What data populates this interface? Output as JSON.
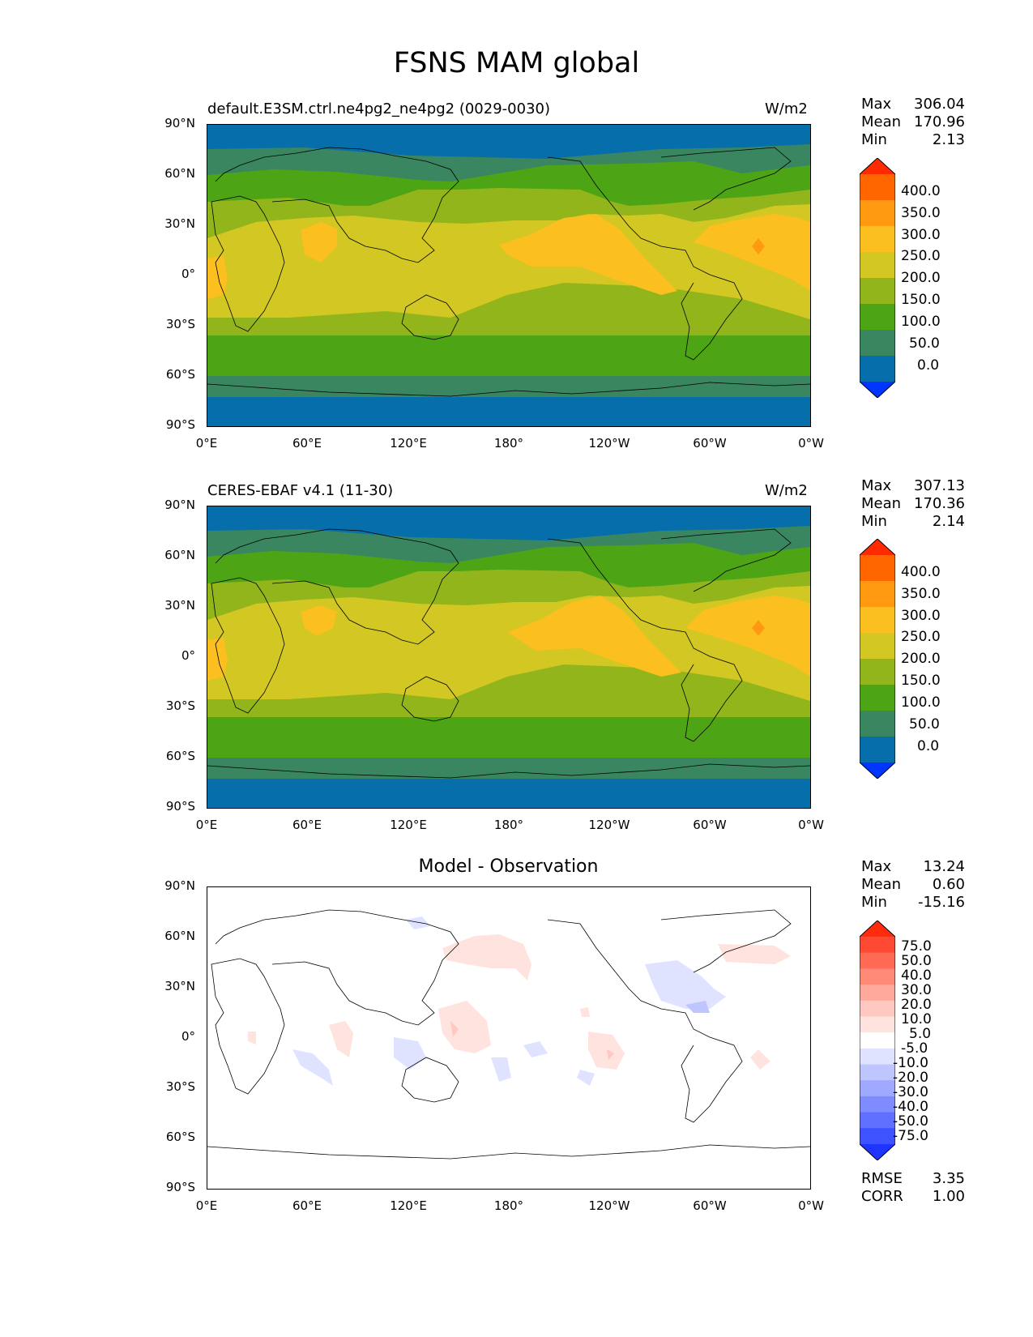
{
  "figure": {
    "title": "FSNS MAM global"
  },
  "axes": {
    "lat_ticks": [
      "90°N",
      "60°N",
      "30°N",
      "0°",
      "30°S",
      "60°S",
      "90°S"
    ],
    "lon_ticks": [
      "0°E",
      "60°E",
      "120°E",
      "180°",
      "120°W",
      "60°W",
      "0°W"
    ]
  },
  "panels": [
    {
      "left_title": "default.E3SM.ctrl.ne4pg2_ne4pg2 (0029-0030)",
      "right_title": "W/m2",
      "stats": [
        {
          "label": "Max",
          "value": "306.04"
        },
        {
          "label": "Mean",
          "value": "170.96"
        },
        {
          "label": "Min",
          "value": "2.13"
        }
      ],
      "colorbar": {
        "levels": [
          "400.0",
          "350.0",
          "300.0",
          "250.0",
          "200.0",
          "150.0",
          "100.0",
          "50.0",
          "0.0"
        ],
        "colors": [
          "#ff2a00",
          "#ff6600",
          "#ff9a10",
          "#fbbf1f",
          "#d2c723",
          "#93b51c",
          "#4da516",
          "#398660",
          "#066fab",
          "#0034ff"
        ]
      }
    },
    {
      "left_title": "CERES-EBAF v4.1 (11-30)",
      "right_title": "W/m2",
      "stats": [
        {
          "label": "Max",
          "value": "307.13"
        },
        {
          "label": "Mean",
          "value": "170.36"
        },
        {
          "label": "Min",
          "value": "2.14"
        }
      ],
      "colorbar": {
        "levels": [
          "400.0",
          "350.0",
          "300.0",
          "250.0",
          "200.0",
          "150.0",
          "100.0",
          "50.0",
          "0.0"
        ],
        "colors": [
          "#ff2a00",
          "#ff6600",
          "#ff9a10",
          "#fbbf1f",
          "#d2c723",
          "#93b51c",
          "#4da516",
          "#398660",
          "#066fab",
          "#0034ff"
        ]
      }
    },
    {
      "center_title": "Model - Observation",
      "stats": [
        {
          "label": "Max",
          "value": "13.24"
        },
        {
          "label": "Mean",
          "value": "0.60"
        },
        {
          "label": "Min",
          "value": "-15.16"
        }
      ],
      "extra_stats": [
        {
          "label": "RMSE",
          "value": "3.35"
        },
        {
          "label": "CORR",
          "value": "1.00"
        }
      ],
      "colorbar": {
        "levels": [
          "75.0",
          "50.0",
          "40.0",
          "30.0",
          "20.0",
          "10.0",
          "5.0",
          "-5.0",
          "-10.0",
          "-20.0",
          "-30.0",
          "-40.0",
          "-50.0",
          "-75.0"
        ],
        "colors": [
          "#ff2b0d",
          "#ff4a33",
          "#ff6a55",
          "#ff8a77",
          "#ffa99c",
          "#ffc8c0",
          "#ffe3de",
          "#ffffff",
          "#dfe3ff",
          "#bfc6ff",
          "#9fa9ff",
          "#7f8cff",
          "#5f6fff",
          "#3f52ff",
          "#1f35ff"
        ]
      }
    }
  ]
}
